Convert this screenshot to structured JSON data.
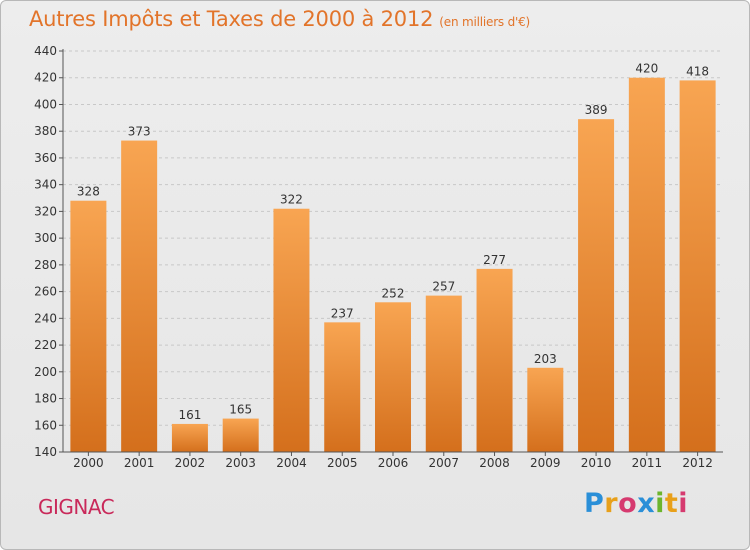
{
  "header": {
    "title": "Autres Impôts et Taxes de 2000 à 2012",
    "unit": "(en milliers d'€)"
  },
  "footer": {
    "city": "GIGNAC",
    "logo_text": "Proxiti"
  },
  "colors": {
    "title": "#e2742a",
    "city": "#c9295a",
    "bar_light": "#f8a552",
    "bar_dark": "#d46f1c",
    "background": "#ebebeb"
  },
  "chart_data": {
    "type": "bar",
    "title": "Autres Impôts et Taxes de 2000 à 2012",
    "subtitle": "(en milliers d'€)",
    "categories": [
      "2000",
      "2001",
      "2002",
      "2003",
      "2004",
      "2005",
      "2006",
      "2007",
      "2008",
      "2009",
      "2010",
      "2011",
      "2012"
    ],
    "values": [
      328,
      373,
      161,
      165,
      322,
      237,
      252,
      257,
      277,
      203,
      389,
      420,
      418
    ],
    "ylim": [
      140,
      440
    ],
    "ytick_step": 20,
    "xlabel": "",
    "ylabel": "",
    "grid": true,
    "data_labels": true,
    "legend": "none"
  }
}
